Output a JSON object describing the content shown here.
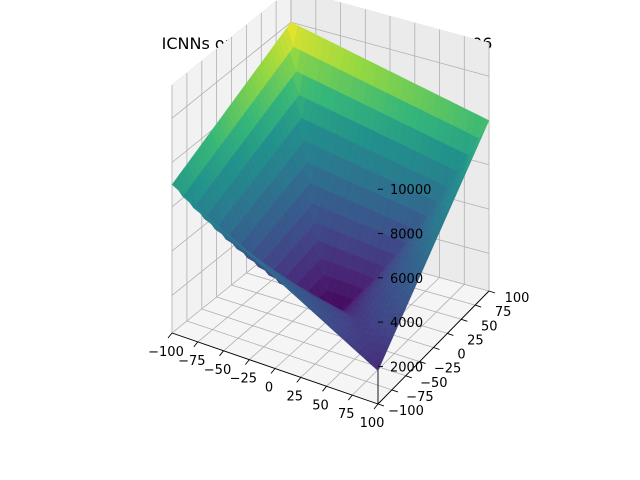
{
  "chart_data": {
    "type": "surface3d",
    "title": "ICNNs on schaffer4 at t = 20 with lr1e-06",
    "colormap": "viridis",
    "x": {
      "label": "",
      "range": [
        -100,
        100
      ],
      "ticks": [
        -100,
        -75,
        -50,
        -25,
        0,
        25,
        50,
        75,
        100
      ],
      "tick_labels": [
        "−100",
        "−75",
        "−50",
        "−25",
        "0",
        "25",
        "50",
        "75",
        "100"
      ]
    },
    "y": {
      "label": "",
      "range": [
        -100,
        100
      ],
      "ticks": [
        -100,
        -75,
        -50,
        -25,
        0,
        25,
        50,
        75,
        100
      ],
      "tick_labels": [
        "−100",
        "−75",
        "−50",
        "−25",
        "0",
        "25",
        "50",
        "75",
        "100"
      ]
    },
    "z": {
      "label": "",
      "range": [
        300,
        11500
      ],
      "ticks": [
        2000,
        4000,
        6000,
        8000,
        10000
      ],
      "tick_labels": [
        "2000",
        "4000",
        "6000",
        "8000",
        "10000"
      ]
    },
    "grid": true,
    "surface_corners": {
      "x_min_y_min": 7000,
      "x_max_y_min": 1800,
      "x_max_y_max": 8000,
      "x_min_y_max": 10000,
      "center": 300
    }
  }
}
